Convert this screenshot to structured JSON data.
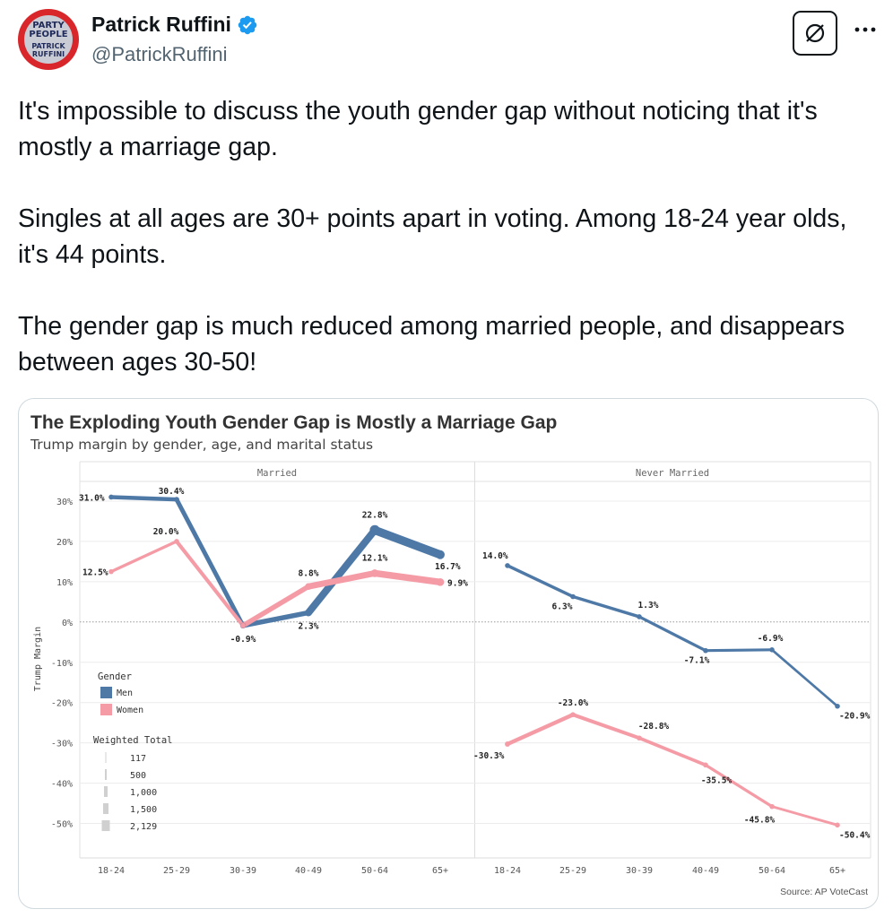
{
  "author": {
    "name": "Patrick Ruffini",
    "handle": "@PatrickRuffini",
    "avatar_text_top": "PARTY OF THE PEOPLE",
    "avatar_text_bottom": "PATRICK RUFFINI",
    "verified_color": "#1d9bf0"
  },
  "tweet": {
    "paragraphs": [
      "It's impossible to discuss the youth gender gap without noticing that it's mostly a marriage gap.",
      "Singles at all ages are 30+ points apart in voting. Among 18-24 year olds, it's 44 points.",
      "The gender gap is much reduced among married people, and disappears between ages 30-50!"
    ]
  },
  "actions": {
    "grok_icon": "slashed-circle-icon",
    "more_icon": "ellipsis-icon"
  },
  "chart_data": {
    "type": "line",
    "title": "The Exploding Youth Gender Gap is Mostly a Marriage Gap",
    "subtitle": "Trump margin by gender, age, and marital status",
    "ylabel": "Trump Margin",
    "ylim": [
      -55,
      34
    ],
    "y_ticks": [
      30,
      20,
      10,
      0,
      -10,
      -20,
      -30,
      -40,
      -50
    ],
    "y_tick_labels": [
      "30%",
      "20%",
      "10%",
      "0%",
      "-10%",
      "-20%",
      "-30%",
      "-40%",
      "-50%"
    ],
    "categories": [
      "18-24",
      "25-29",
      "30-39",
      "40-49",
      "50-64",
      "65+"
    ],
    "colors": {
      "Men": "#4e79a7",
      "Women": "#f59ba6"
    },
    "panels": [
      {
        "name": "Married",
        "series": [
          {
            "name": "Men",
            "values": [
              31.0,
              30.4,
              -0.9,
              2.3,
              22.8,
              16.7
            ],
            "labels": [
              "31.0%",
              "30.4%",
              "-0.9%",
              "2.3%",
              "22.8%",
              "16.7%"
            ],
            "weights": [
              700,
              800,
              900,
              1100,
              2129,
              1800
            ]
          },
          {
            "name": "Women",
            "values": [
              12.5,
              20.0,
              -0.9,
              8.8,
              12.1,
              9.9
            ],
            "labels": [
              "12.5%",
              "20.0%",
              "",
              "8.8%",
              "12.1%",
              "9.9%"
            ],
            "weights": [
              400,
              500,
              800,
              1200,
              1500,
              1500
            ]
          }
        ]
      },
      {
        "name": "Never Married",
        "series": [
          {
            "name": "Men",
            "values": [
              14.0,
              6.3,
              1.3,
              -7.1,
              -6.9,
              -20.9
            ],
            "labels": [
              "14.0%",
              "6.3%",
              "1.3%",
              "-7.1%",
              "-6.9%",
              "-20.9%"
            ],
            "weights": [
              500,
              500,
              500,
              400,
              400,
              200
            ]
          },
          {
            "name": "Women",
            "values": [
              -30.3,
              -23.0,
              -28.8,
              -35.5,
              -45.8,
              -50.4
            ],
            "labels": [
              "-30.3%",
              "-23.0%",
              "-28.8%",
              "-35.5%",
              "-45.8%",
              "-50.4%"
            ],
            "weights": [
              800,
              700,
              600,
              500,
              400,
              300
            ]
          }
        ]
      }
    ],
    "legend": {
      "title": "Gender",
      "items": [
        "Men",
        "Women"
      ],
      "size_title": "Weighted Total",
      "size_items": [
        "117",
        "500",
        "1,000",
        "1,500",
        "2,129"
      ],
      "placement": "bottom-left"
    },
    "grid": true,
    "source": "Source: AP VoteCast"
  }
}
